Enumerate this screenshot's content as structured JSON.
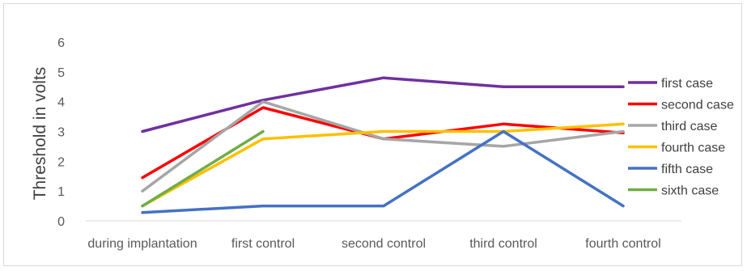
{
  "chart_data": {
    "type": "line",
    "title": "",
    "xlabel": "",
    "ylabel": "Threshold in volts",
    "categories": [
      "during implantation",
      "first control",
      "second control",
      "third control",
      "fourth control"
    ],
    "ylim": [
      0,
      6
    ],
    "yticks": [
      0,
      1,
      2,
      3,
      4,
      5,
      6
    ],
    "grid": false,
    "legend_position": "right",
    "series": [
      {
        "name": "first case",
        "color": "#7030a0",
        "values": [
          3.0,
          4.05,
          4.8,
          4.5,
          4.5
        ]
      },
      {
        "name": "second case",
        "color": "#ff0000",
        "values": [
          1.45,
          3.8,
          2.75,
          3.25,
          2.95
        ]
      },
      {
        "name": "third case",
        "color": "#a6a6a6",
        "values": [
          1.0,
          4.0,
          2.75,
          2.5,
          3.0
        ]
      },
      {
        "name": "fourth case",
        "color": "#ffc000",
        "values": [
          0.5,
          2.75,
          3.0,
          3.0,
          3.25
        ]
      },
      {
        "name": "fifth case",
        "color": "#4472c4",
        "values": [
          0.28,
          0.5,
          0.5,
          3.0,
          0.5
        ]
      },
      {
        "name": "sixth case",
        "color": "#70ad47",
        "values": [
          0.5,
          3.0,
          null,
          null,
          null
        ]
      }
    ]
  }
}
